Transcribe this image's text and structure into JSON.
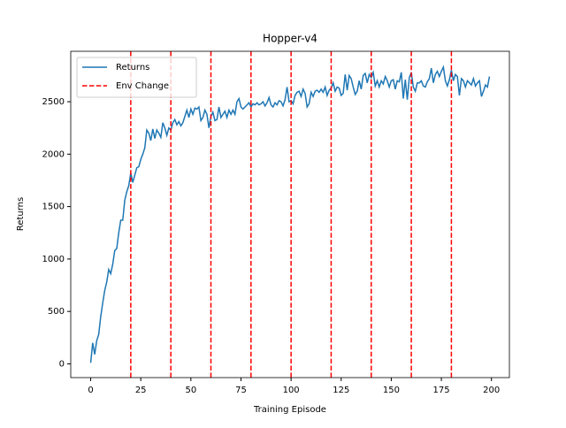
{
  "chart_data": {
    "type": "line",
    "title": "Hopper-v4",
    "xlabel": "Training Episode",
    "ylabel": "Returns",
    "x": [
      0,
      1,
      2,
      3,
      4,
      5,
      6,
      7,
      8,
      9,
      10,
      11,
      12,
      13,
      14,
      15,
      16,
      17,
      18,
      19,
      20,
      21,
      22,
      23,
      24,
      25,
      26,
      27,
      28,
      29,
      30,
      31,
      32,
      33,
      34,
      35,
      36,
      37,
      38,
      39,
      40,
      41,
      42,
      43,
      44,
      45,
      46,
      47,
      48,
      49,
      50,
      51,
      52,
      53,
      54,
      55,
      56,
      57,
      58,
      59,
      60,
      61,
      62,
      63,
      64,
      65,
      66,
      67,
      68,
      69,
      70,
      71,
      72,
      73,
      74,
      75,
      76,
      77,
      78,
      79,
      80,
      81,
      82,
      83,
      84,
      85,
      86,
      87,
      88,
      89,
      90,
      91,
      92,
      93,
      94,
      95,
      96,
      97,
      98,
      99,
      100,
      101,
      102,
      103,
      104,
      105,
      106,
      107,
      108,
      109,
      110,
      111,
      112,
      113,
      114,
      115,
      116,
      117,
      118,
      119,
      120,
      121,
      122,
      123,
      124,
      125,
      126,
      127,
      128,
      129,
      130,
      131,
      132,
      133,
      134,
      135,
      136,
      137,
      138,
      139,
      140,
      141,
      142,
      143,
      144,
      145,
      146,
      147,
      148,
      149,
      150,
      151,
      152,
      153,
      154,
      155,
      156,
      157,
      158,
      159,
      160,
      161,
      162,
      163,
      164,
      165,
      166,
      167,
      168,
      169,
      170,
      171,
      172,
      173,
      174,
      175,
      176,
      177,
      178,
      179,
      180,
      181,
      182,
      183,
      184,
      185,
      186,
      187,
      188,
      189,
      190,
      191,
      192,
      193,
      194,
      195,
      196,
      197,
      198,
      199
    ],
    "series": [
      {
        "name": "Returns",
        "color": "#1f77b4",
        "values": [
          10,
          200,
          90,
          220,
          280,
          450,
          580,
          700,
          780,
          900,
          860,
          950,
          1080,
          1100,
          1250,
          1370,
          1370,
          1560,
          1640,
          1700,
          1820,
          1730,
          1800,
          1870,
          1880,
          1950,
          2000,
          2060,
          2230,
          2200,
          2130,
          2240,
          2150,
          2230,
          2200,
          2160,
          2300,
          2250,
          2180,
          2250,
          2230,
          2300,
          2330,
          2280,
          2310,
          2270,
          2300,
          2360,
          2420,
          2350,
          2430,
          2380,
          2440,
          2430,
          2450,
          2320,
          2350,
          2420,
          2380,
          2250,
          2360,
          2400,
          2320,
          2330,
          2450,
          2350,
          2380,
          2410,
          2350,
          2420,
          2380,
          2420,
          2380,
          2500,
          2530,
          2450,
          2430,
          2450,
          2470,
          2490,
          2450,
          2480,
          2470,
          2490,
          2470,
          2480,
          2500,
          2460,
          2490,
          2540,
          2470,
          2450,
          2490,
          2470,
          2510,
          2500,
          2460,
          2520,
          2640,
          2500,
          2510,
          2480,
          2560,
          2590,
          2600,
          2550,
          2620,
          2580,
          2450,
          2480,
          2590,
          2550,
          2600,
          2610,
          2590,
          2620,
          2590,
          2640,
          2560,
          2610,
          2630,
          2680,
          2600,
          2640,
          2630,
          2560,
          2580,
          2760,
          2610,
          2750,
          2720,
          2640,
          2570,
          2600,
          2700,
          2620,
          2750,
          2770,
          2680,
          2760,
          2730,
          2780,
          2650,
          2700,
          2640,
          2700,
          2670,
          2740,
          2700,
          2640,
          2700,
          2710,
          2620,
          2700,
          2690,
          2780,
          2530,
          2710,
          2520,
          2730,
          2780,
          2640,
          2600,
          2680,
          2680,
          2700,
          2650,
          2640,
          2690,
          2720,
          2820,
          2680,
          2760,
          2790,
          2740,
          2790,
          2830,
          2700,
          2650,
          2710,
          2800,
          2700,
          2760,
          2740,
          2560,
          2720,
          2700,
          2640,
          2700,
          2680,
          2660,
          2720,
          2650,
          2680,
          2700,
          2550,
          2600,
          2660,
          2640,
          2740
        ]
      }
    ],
    "vlines": {
      "name": "Env Change",
      "color": "#ff0000",
      "values": [
        20,
        40,
        60,
        80,
        100,
        120,
        140,
        160,
        180
      ]
    },
    "xlim": [
      -9.95,
      208.95
    ],
    "ylim": [
      -131,
      2981
    ],
    "xticks": [
      0,
      25,
      50,
      75,
      100,
      125,
      150,
      175,
      200
    ],
    "yticks": [
      0,
      500,
      1000,
      1500,
      2000,
      2500
    ],
    "legend": "upper left"
  }
}
